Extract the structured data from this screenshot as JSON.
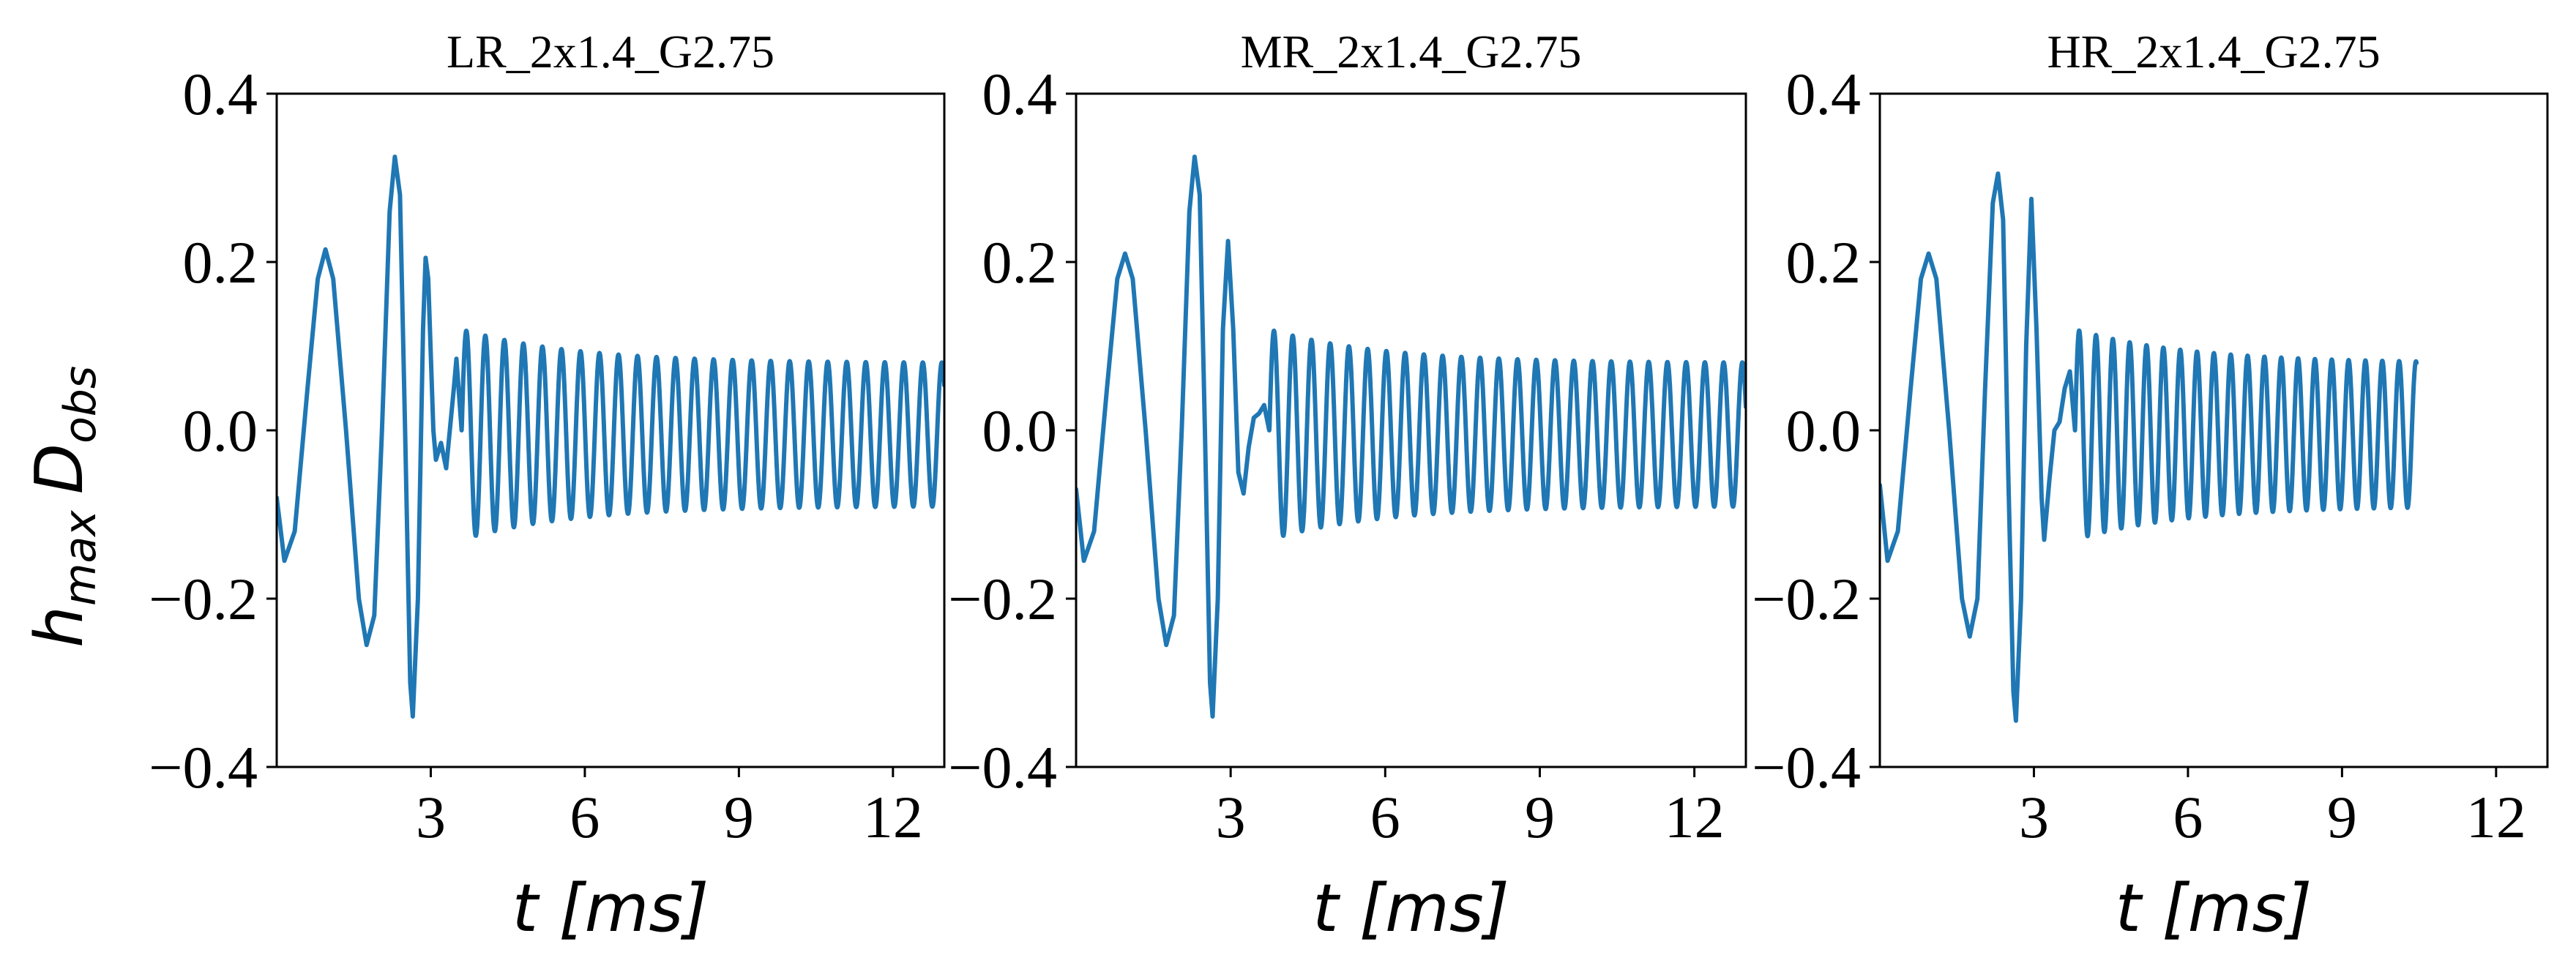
{
  "figure": {
    "ylabel": "h_max D_obs",
    "ylabel_main": "h",
    "ylabel_sub1": "max",
    "ylabel_d": "D",
    "ylabel_sub2": "obs",
    "xlabel": "t [ms]",
    "line_color": "#1f77b4"
  },
  "chart_data": [
    {
      "type": "line",
      "title": "LR_2x1.4_G2.75",
      "xlabel": "t [ms]",
      "ylabel": "h_max D_obs",
      "xlim": [
        0,
        13
      ],
      "ylim": [
        -0.4,
        0.4
      ],
      "xticks": [
        "3",
        "6",
        "9",
        "12"
      ],
      "yticks": [
        "−0.4",
        "−0.2",
        "0.0",
        "0.2",
        "0.4"
      ],
      "grid": false,
      "series": [
        {
          "t_end": 13.0,
          "ringdown_start": 3.0,
          "ringdown_freq_khz": 2.7,
          "points": [
            [
              0.0,
              -0.08
            ],
            [
              0.15,
              -0.155
            ],
            [
              0.35,
              -0.12
            ],
            [
              0.6,
              0.05
            ],
            [
              0.8,
              0.18
            ],
            [
              0.95,
              0.215
            ],
            [
              1.1,
              0.18
            ],
            [
              1.35,
              0.0
            ],
            [
              1.6,
              -0.2
            ],
            [
              1.75,
              -0.255
            ],
            [
              1.9,
              -0.22
            ],
            [
              2.05,
              0.0
            ],
            [
              2.2,
              0.26
            ],
            [
              2.3,
              0.325
            ],
            [
              2.4,
              0.28
            ],
            [
              2.5,
              0.0
            ],
            [
              2.6,
              -0.3
            ],
            [
              2.65,
              -0.34
            ],
            [
              2.75,
              -0.2
            ],
            [
              2.85,
              0.12
            ],
            [
              2.9,
              0.205
            ],
            [
              2.95,
              0.18
            ],
            [
              3.05,
              0.0
            ],
            [
              3.1,
              -0.035
            ],
            [
              3.2,
              -0.015
            ],
            [
              3.3,
              -0.045
            ],
            [
              3.45,
              0.05
            ],
            [
              3.5,
              0.085
            ],
            [
              3.6,
              0.0
            ]
          ]
        }
      ]
    },
    {
      "type": "line",
      "title": "MR_2x1.4_G2.75",
      "xlabel": "t [ms]",
      "ylabel": "h_max D_obs",
      "xlim": [
        0,
        13
      ],
      "ylim": [
        -0.4,
        0.4
      ],
      "xticks": [
        "3",
        "6",
        "9",
        "12"
      ],
      "yticks": [
        "−0.4",
        "−0.2",
        "0.0",
        "0.2",
        "0.4"
      ],
      "grid": false,
      "series": [
        {
          "t_end": 13.0,
          "ringdown_start": 3.0,
          "ringdown_freq_khz": 2.75,
          "points": [
            [
              0.0,
              -0.07
            ],
            [
              0.15,
              -0.155
            ],
            [
              0.35,
              -0.12
            ],
            [
              0.6,
              0.05
            ],
            [
              0.8,
              0.18
            ],
            [
              0.95,
              0.21
            ],
            [
              1.1,
              0.18
            ],
            [
              1.35,
              0.0
            ],
            [
              1.6,
              -0.2
            ],
            [
              1.75,
              -0.255
            ],
            [
              1.9,
              -0.22
            ],
            [
              2.05,
              0.0
            ],
            [
              2.2,
              0.26
            ],
            [
              2.3,
              0.325
            ],
            [
              2.4,
              0.28
            ],
            [
              2.5,
              0.0
            ],
            [
              2.6,
              -0.3
            ],
            [
              2.65,
              -0.34
            ],
            [
              2.75,
              -0.2
            ],
            [
              2.85,
              0.12
            ],
            [
              2.95,
              0.225
            ],
            [
              3.05,
              0.12
            ],
            [
              3.15,
              -0.05
            ],
            [
              3.25,
              -0.075
            ],
            [
              3.35,
              -0.02
            ],
            [
              3.45,
              0.015
            ],
            [
              3.55,
              0.02
            ],
            [
              3.65,
              0.03
            ],
            [
              3.75,
              0.0
            ]
          ]
        }
      ]
    },
    {
      "type": "line",
      "title": "HR_2x1.4_G2.75",
      "xlabel": "t [ms]",
      "ylabel": "h_max D_obs",
      "xlim": [
        0,
        13
      ],
      "ylim": [
        -0.4,
        0.4
      ],
      "xticks": [
        "3",
        "6",
        "9",
        "12"
      ],
      "yticks": [
        "−0.4",
        "−0.2",
        "0.0",
        "0.2",
        "0.4"
      ],
      "grid": false,
      "series": [
        {
          "t_end": 10.45,
          "ringdown_start": 3.0,
          "ringdown_freq_khz": 3.05,
          "points": [
            [
              0.0,
              -0.065
            ],
            [
              0.15,
              -0.155
            ],
            [
              0.35,
              -0.12
            ],
            [
              0.6,
              0.05
            ],
            [
              0.8,
              0.18
            ],
            [
              0.95,
              0.21
            ],
            [
              1.1,
              0.18
            ],
            [
              1.35,
              0.0
            ],
            [
              1.6,
              -0.2
            ],
            [
              1.75,
              -0.245
            ],
            [
              1.9,
              -0.2
            ],
            [
              2.05,
              0.05
            ],
            [
              2.2,
              0.27
            ],
            [
              2.3,
              0.305
            ],
            [
              2.4,
              0.25
            ],
            [
              2.5,
              -0.05
            ],
            [
              2.6,
              -0.31
            ],
            [
              2.65,
              -0.345
            ],
            [
              2.75,
              -0.2
            ],
            [
              2.85,
              0.1
            ],
            [
              2.95,
              0.275
            ],
            [
              3.05,
              0.12
            ],
            [
              3.15,
              -0.08
            ],
            [
              3.2,
              -0.13
            ],
            [
              3.3,
              -0.06
            ],
            [
              3.4,
              0.0
            ],
            [
              3.5,
              0.01
            ],
            [
              3.6,
              0.05
            ],
            [
              3.7,
              0.07
            ],
            [
              3.8,
              0.0
            ]
          ]
        }
      ]
    }
  ]
}
